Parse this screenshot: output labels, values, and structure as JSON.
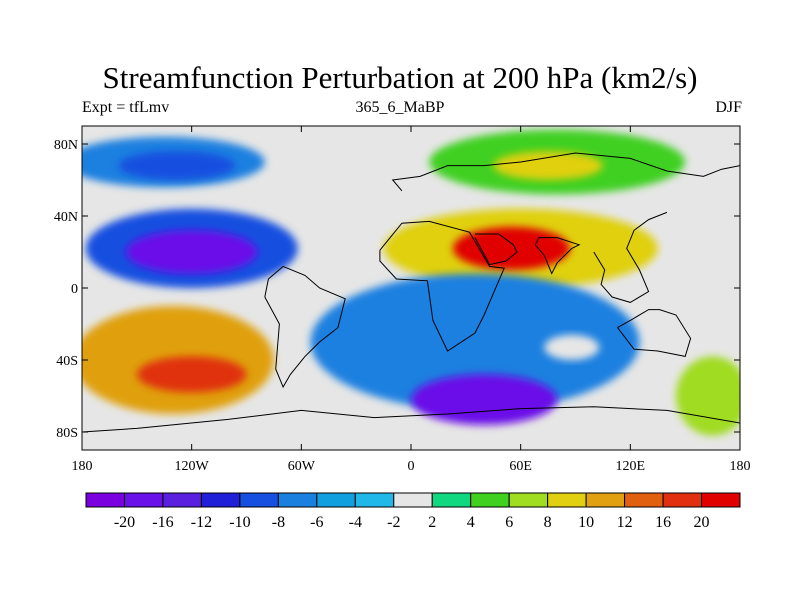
{
  "title": "Streamfunction Perturbation at 200 hPa (km2/s)",
  "subtitle_left": "Expt = tfLmv",
  "subtitle_center": "365_6_MaBP",
  "subtitle_right": "DJF",
  "map_data": {
    "type": "filled-contour-map",
    "projection": "cylindrical-equidistant",
    "lon_range": [
      -180,
      180
    ],
    "lat_range": [
      -90,
      90
    ],
    "x_ticks": [
      {
        "lon": -180,
        "label": "180"
      },
      {
        "lon": -120,
        "label": "120W"
      },
      {
        "lon": -60,
        "label": "60W"
      },
      {
        "lon": 0,
        "label": "0"
      },
      {
        "lon": 60,
        "label": "60E"
      },
      {
        "lon": 120,
        "label": "120E"
      },
      {
        "lon": 180,
        "label": "180"
      }
    ],
    "y_ticks": [
      {
        "lat": 80,
        "label": "80N"
      },
      {
        "lat": 40,
        "label": "40N"
      },
      {
        "lat": 0,
        "label": "0"
      },
      {
        "lat": -40,
        "label": "40S"
      },
      {
        "lat": -80,
        "label": "80S"
      }
    ],
    "background_color": "#e6e6e6",
    "features": [
      {
        "name": "north-pacific-low",
        "lon": -135,
        "lat": 70,
        "rx": 55,
        "ry": 14,
        "value": -7
      },
      {
        "name": "north-pacific-low-core",
        "lon": -128,
        "lat": 68,
        "rx": 32,
        "ry": 8,
        "value": -9
      },
      {
        "name": "tropical-pacific-low",
        "lon": -120,
        "lat": 22,
        "rx": 58,
        "ry": 22,
        "value": -10
      },
      {
        "name": "tropical-pacific-low-core",
        "lon": -120,
        "lat": 20,
        "rx": 36,
        "ry": 12,
        "value": -18
      },
      {
        "name": "south-pacific-high",
        "lon": -130,
        "lat": -40,
        "rx": 55,
        "ry": 30,
        "value": 11
      },
      {
        "name": "south-pacific-high-core",
        "lon": -120,
        "lat": -48,
        "rx": 30,
        "ry": 10,
        "value": 17
      },
      {
        "name": "eurasia-north-high",
        "lon": 80,
        "lat": 70,
        "rx": 70,
        "ry": 18,
        "value": 5
      },
      {
        "name": "eurasia-north-high-core",
        "lon": 75,
        "lat": 68,
        "rx": 30,
        "ry": 8,
        "value": 9
      },
      {
        "name": "asia-subtropical-high",
        "lon": 60,
        "lat": 22,
        "rx": 75,
        "ry": 22,
        "value": 9
      },
      {
        "name": "asia-subtropical-high-core",
        "lon": 55,
        "lat": 22,
        "rx": 32,
        "ry": 12,
        "value": 21
      },
      {
        "name": "southern-hemisphere-low",
        "lon": 35,
        "lat": -30,
        "rx": 90,
        "ry": 38,
        "value": -7
      },
      {
        "name": "southern-hemisphere-low-core",
        "lon": 40,
        "lat": -62,
        "rx": 40,
        "ry": 14,
        "value": -19
      },
      {
        "name": "south-indian-island",
        "lon": 88,
        "lat": -33,
        "rx": 15,
        "ry": 7,
        "value": 0
      },
      {
        "name": "southeast-pacific-high",
        "lon": 165,
        "lat": -60,
        "rx": 20,
        "ry": 22,
        "value": 7
      }
    ]
  },
  "colorbar": {
    "colors": [
      "#7a00e0",
      "#6a10e8",
      "#5a20e0",
      "#2020d8",
      "#1550e0",
      "#1a80e0",
      "#10a0e0",
      "#20b8e8",
      "#e6e6e6",
      "#10d880",
      "#40d020",
      "#a0dc20",
      "#e0d010",
      "#e0a010",
      "#e06010",
      "#e03010",
      "#e00000"
    ],
    "labels": [
      "-20",
      "-16",
      "-12",
      "-10",
      "-8",
      "-6",
      "-4",
      "-2",
      "2",
      "4",
      "6",
      "8",
      "10",
      "12",
      "16",
      "20"
    ]
  }
}
